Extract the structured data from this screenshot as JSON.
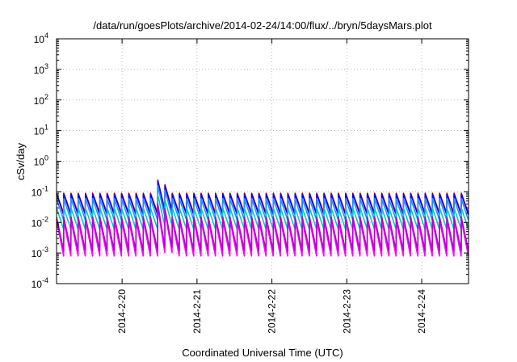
{
  "chart_data": {
    "type": "line",
    "title": "/data/run/goesPlots/archive/2014-02-24/14:00/flux/../bryn/5daysMars.plot",
    "xlabel": "Coordinated Universal Time (UTC)",
    "ylabel": "cSv/day",
    "yscale": "log",
    "ylim": [
      0.0001,
      10000
    ],
    "xlim": [
      "2014-02-19 03:00",
      "2014-02-24 15:00"
    ],
    "grid": true,
    "y_ticks": [
      {
        "base": "10",
        "exp": "-4"
      },
      {
        "base": "10",
        "exp": "-3"
      },
      {
        "base": "10",
        "exp": "-2"
      },
      {
        "base": "10",
        "exp": "-1"
      },
      {
        "base": "10",
        "exp": "0"
      },
      {
        "base": "10",
        "exp": "1"
      },
      {
        "base": "10",
        "exp": "2"
      },
      {
        "base": "10",
        "exp": "3"
      },
      {
        "base": "10",
        "exp": "4"
      }
    ],
    "x_ticks": [
      "2014-2-20",
      "2014-2-21",
      "2014-2-22",
      "2014-2-23",
      "2014-2-24"
    ],
    "sawtooth": {
      "cycles": 57,
      "event_cycle": 14,
      "event_multiplier": 2.7
    },
    "series": [
      {
        "color": "#ff0000",
        "peak": 0.09,
        "trough": 0.02
      },
      {
        "color": "#0000ff",
        "peak": 0.085,
        "trough": 0.018
      },
      {
        "color": "#1e90ff",
        "peak": 0.06,
        "trough": 0.012
      },
      {
        "color": "#00c8c8",
        "peak": 0.03,
        "trough": 0.006
      },
      {
        "color": "#ff00ff",
        "peak": 0.012,
        "trough": 0.0008
      },
      {
        "color": "#b400d2",
        "peak": 0.015,
        "trough": 0.0012
      }
    ]
  }
}
